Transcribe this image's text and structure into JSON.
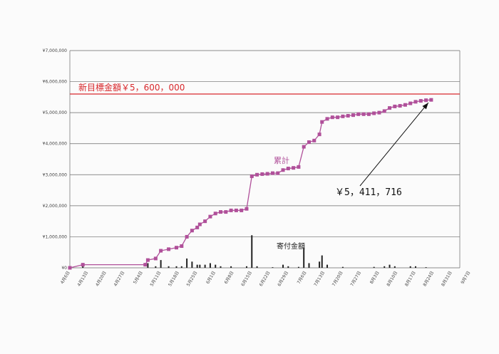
{
  "chart_data": {
    "type": "line",
    "y_ticks": [
      "¥0",
      "¥1,000,000",
      "¥2,000,000",
      "¥3,000,000",
      "¥4,000,000",
      "¥5,000,000",
      "¥6,000,000",
      "¥7,000,000"
    ],
    "ylim": [
      0,
      7000000
    ],
    "x_range": [
      0,
      150
    ],
    "x_ticks": [
      {
        "label": "4月6日",
        "day": 0
      },
      {
        "label": "4月13日",
        "day": 7
      },
      {
        "label": "4月20日",
        "day": 14
      },
      {
        "label": "4月27日",
        "day": 21
      },
      {
        "label": "5月4日",
        "day": 28
      },
      {
        "label": "5月11日",
        "day": 35
      },
      {
        "label": "5月18日",
        "day": 42
      },
      {
        "label": "5月25日",
        "day": 49
      },
      {
        "label": "6月1日",
        "day": 56
      },
      {
        "label": "6月8日",
        "day": 63
      },
      {
        "label": "6月15日",
        "day": 70
      },
      {
        "label": "6月22日",
        "day": 77
      },
      {
        "label": "6月29日",
        "day": 84
      },
      {
        "label": "7月6日",
        "day": 91
      },
      {
        "label": "7月13日",
        "day": 98
      },
      {
        "label": "7月20日",
        "day": 105
      },
      {
        "label": "7月27日",
        "day": 112
      },
      {
        "label": "8月3日",
        "day": 119
      },
      {
        "label": "8月10日",
        "day": 126
      },
      {
        "label": "8月17日",
        "day": 133
      },
      {
        "label": "8月24日",
        "day": 140
      },
      {
        "label": "8月31日",
        "day": 147
      },
      {
        "label": "9月7日",
        "day": 154
      }
    ],
    "grid": true,
    "target": {
      "label": "新目標金額￥5，600，000",
      "value": 5600000,
      "color": "#d8282c"
    },
    "series": [
      {
        "name": "累計",
        "color": "#b0509a",
        "points": [
          [
            0,
            0
          ],
          [
            5,
            100000
          ],
          [
            29,
            100000
          ],
          [
            30,
            250000
          ],
          [
            33,
            300000
          ],
          [
            35,
            550000
          ],
          [
            38,
            600000
          ],
          [
            41,
            650000
          ],
          [
            43,
            700000
          ],
          [
            45,
            1000000
          ],
          [
            47,
            1200000
          ],
          [
            49,
            1300000
          ],
          [
            50,
            1400000
          ],
          [
            52,
            1500000
          ],
          [
            54,
            1650000
          ],
          [
            56,
            1750000
          ],
          [
            58,
            1800000
          ],
          [
            60,
            1800000
          ],
          [
            62,
            1850000
          ],
          [
            64,
            1850000
          ],
          [
            66,
            1850000
          ],
          [
            68,
            1900000
          ],
          [
            70,
            2950000
          ],
          [
            72,
            3000000
          ],
          [
            74,
            3020000
          ],
          [
            76,
            3030000
          ],
          [
            78,
            3050000
          ],
          [
            80,
            3050000
          ],
          [
            82,
            3150000
          ],
          [
            84,
            3200000
          ],
          [
            86,
            3220000
          ],
          [
            88,
            3250000
          ],
          [
            90,
            3900000
          ],
          [
            92,
            4050000
          ],
          [
            94,
            4100000
          ],
          [
            96,
            4300000
          ],
          [
            97,
            4700000
          ],
          [
            99,
            4800000
          ],
          [
            101,
            4850000
          ],
          [
            103,
            4850000
          ],
          [
            105,
            4880000
          ],
          [
            107,
            4900000
          ],
          [
            109,
            4920000
          ],
          [
            111,
            4950000
          ],
          [
            113,
            4950000
          ],
          [
            115,
            4950000
          ],
          [
            117,
            4980000
          ],
          [
            119,
            5000000
          ],
          [
            121,
            5050000
          ],
          [
            123,
            5150000
          ],
          [
            125,
            5200000
          ],
          [
            127,
            5220000
          ],
          [
            129,
            5250000
          ],
          [
            131,
            5300000
          ],
          [
            133,
            5350000
          ],
          [
            135,
            5380000
          ],
          [
            137,
            5400000
          ],
          [
            139,
            5411716
          ]
        ]
      },
      {
        "name": "寄付金額",
        "color": "#222222",
        "type": "bar",
        "points": [
          [
            5,
            100000
          ],
          [
            30,
            150000
          ],
          [
            33,
            50000
          ],
          [
            35,
            250000
          ],
          [
            38,
            50000
          ],
          [
            41,
            50000
          ],
          [
            43,
            50000
          ],
          [
            45,
            300000
          ],
          [
            47,
            200000
          ],
          [
            49,
            100000
          ],
          [
            50,
            100000
          ],
          [
            52,
            100000
          ],
          [
            54,
            150000
          ],
          [
            56,
            100000
          ],
          [
            58,
            50000
          ],
          [
            62,
            50000
          ],
          [
            68,
            50000
          ],
          [
            70,
            1050000
          ],
          [
            72,
            50000
          ],
          [
            78,
            20000
          ],
          [
            82,
            100000
          ],
          [
            84,
            50000
          ],
          [
            88,
            30000
          ],
          [
            90,
            650000
          ],
          [
            92,
            150000
          ],
          [
            96,
            200000
          ],
          [
            97,
            400000
          ],
          [
            99,
            100000
          ],
          [
            105,
            30000
          ],
          [
            117,
            30000
          ],
          [
            121,
            50000
          ],
          [
            123,
            100000
          ],
          [
            125,
            50000
          ],
          [
            131,
            50000
          ],
          [
            133,
            50000
          ],
          [
            137,
            20000
          ]
        ]
      }
    ],
    "annotations": {
      "cumulative_label": "累計",
      "donation_label": "寄付金額",
      "final_value": "￥5，411，716"
    }
  }
}
